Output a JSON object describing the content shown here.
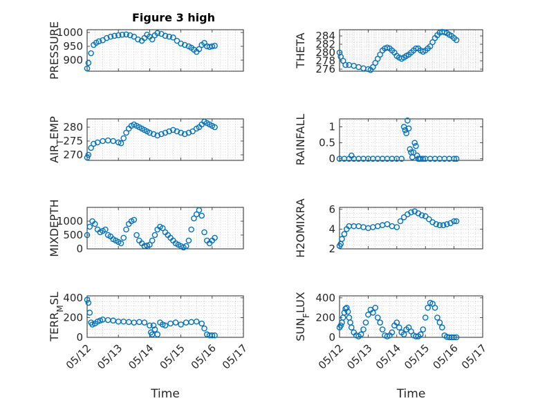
{
  "figure_title": "Figure 3 high",
  "colors": {
    "marker": "#0072BD",
    "axis": "#262626",
    "grid": "#c8c8c8"
  },
  "chart_data": [
    {
      "type": "scatter",
      "ylabel": "PRESSURE",
      "ylim": [
        860,
        1010
      ],
      "yticks": [
        900,
        950,
        1000
      ],
      "xlim": [
        "05/12",
        "05/17"
      ],
      "xticks": [],
      "grid": true,
      "series": [
        {
          "x": [
            "05/12 00:00",
            "05/12 01:00",
            "05/12 03:00",
            "05/12 05:00",
            "05/12 07:00",
            "05/12 09:00",
            "05/12 12:00",
            "05/12 15:00",
            "05/12 18:00",
            "05/12 21:00",
            "05/13 00:00",
            "05/13 03:00",
            "05/13 06:00",
            "05/13 09:00",
            "05/13 12:00",
            "05/13 15:00",
            "05/13 18:00",
            "05/13 20:00",
            "05/13 22:00",
            "05/14 00:00",
            "05/14 02:00",
            "05/14 04:00",
            "05/14 06:00",
            "05/14 09:00",
            "05/14 12:00",
            "05/14 15:00",
            "05/14 18:00",
            "05/14 21:00",
            "05/15 00:00",
            "05/15 03:00",
            "05/15 06:00",
            "05/15 08:00",
            "05/15 10:00",
            "05/15 12:00",
            "05/15 14:00",
            "05/15 16:00",
            "05/15 18:00",
            "05/15 20:00",
            "05/15 22:00",
            "05/16 00:00",
            "05/16 02:00"
          ],
          "y": [
            870,
            890,
            925,
            955,
            963,
            968,
            972,
            980,
            985,
            988,
            990,
            992,
            993,
            990,
            985,
            975,
            970,
            980,
            992,
            985,
            975,
            990,
            998,
            995,
            988,
            985,
            982,
            970,
            960,
            955,
            950,
            945,
            938,
            930,
            940,
            955,
            962,
            950,
            948,
            950,
            952
          ]
        }
      ]
    },
    {
      "type": "scatter",
      "ylabel": "THETA",
      "ylim": [
        275.5,
        285.5
      ],
      "yticks": [
        276,
        278,
        280,
        282,
        284
      ],
      "xlim": [
        "05/12",
        "05/17"
      ],
      "xticks": [],
      "grid": true,
      "series": [
        {
          "x": [
            "05/12 00:00",
            "05/12 01:00",
            "05/12 03:00",
            "05/12 05:00",
            "05/12 08:00",
            "05/12 12:00",
            "05/12 16:00",
            "05/12 20:00",
            "05/13 00:00",
            "05/13 02:00",
            "05/13 04:00",
            "05/13 06:00",
            "05/13 08:00",
            "05/13 10:00",
            "05/13 12:00",
            "05/13 14:00",
            "05/13 16:00",
            "05/13 18:00",
            "05/13 20:00",
            "05/13 22:00",
            "05/14 00:00",
            "05/14 02:00",
            "05/14 04:00",
            "05/14 06:00",
            "05/14 08:00",
            "05/14 10:00",
            "05/14 12:00",
            "05/14 14:00",
            "05/14 16:00",
            "05/14 18:00",
            "05/14 20:00",
            "05/14 22:00",
            "05/15 00:00",
            "05/15 02:00",
            "05/15 04:00",
            "05/15 06:00",
            "05/15 08:00",
            "05/15 10:00",
            "05/15 12:00",
            "05/15 14:00",
            "05/15 16:00",
            "05/15 18:00",
            "05/15 20:00",
            "05/15 22:00",
            "05/16 00:00",
            "05/16 02:00"
          ],
          "y": [
            280,
            279,
            278,
            277,
            277,
            276.8,
            276.5,
            276.2,
            276,
            275.8,
            276.5,
            277.5,
            278.5,
            279.5,
            280.5,
            281,
            281.2,
            281,
            280.5,
            280,
            279.2,
            278.8,
            278.5,
            278.8,
            279.2,
            279.5,
            280,
            280.5,
            281,
            281,
            280.5,
            280.2,
            280.5,
            281,
            281.5,
            282.5,
            283.5,
            284.2,
            284.8,
            285,
            284.9,
            284.7,
            284.3,
            284,
            283.5,
            283
          ]
        }
      ]
    },
    {
      "type": "scatter",
      "ylabel": "AIR_TEMP",
      "ylim": [
        268,
        283
      ],
      "yticks": [
        270,
        275,
        280
      ],
      "xlim": [
        "05/12",
        "05/17"
      ],
      "xticks": [],
      "grid": true,
      "series": [
        {
          "x": [
            "05/12 00:00",
            "05/12 01:00",
            "05/12 03:00",
            "05/12 05:00",
            "05/12 08:00",
            "05/12 12:00",
            "05/12 16:00",
            "05/12 20:00",
            "05/13 00:00",
            "05/13 02:00",
            "05/13 04:00",
            "05/13 06:00",
            "05/13 08:00",
            "05/13 10:00",
            "05/13 12:00",
            "05/13 14:00",
            "05/13 16:00",
            "05/13 18:00",
            "05/13 20:00",
            "05/13 22:00",
            "05/14 00:00",
            "05/14 03:00",
            "05/14 06:00",
            "05/14 09:00",
            "05/14 12:00",
            "05/14 15:00",
            "05/14 18:00",
            "05/14 21:00",
            "05/15 00:00",
            "05/15 03:00",
            "05/15 06:00",
            "05/15 09:00",
            "05/15 12:00",
            "05/15 14:00",
            "05/15 16:00",
            "05/15 18:00",
            "05/15 20:00",
            "05/15 22:00",
            "05/16 00:00",
            "05/16 02:00"
          ],
          "y": [
            269,
            270,
            272.5,
            274,
            274.5,
            275,
            275.2,
            275,
            274.5,
            274.2,
            276,
            278,
            279.5,
            280.5,
            281,
            280.5,
            280,
            279.5,
            279,
            278.5,
            278,
            277.5,
            277,
            277.5,
            278,
            278.5,
            279,
            278.5,
            278,
            277.5,
            278,
            278.5,
            279.5,
            280,
            281,
            282,
            281.5,
            281,
            280.5,
            280
          ]
        }
      ]
    },
    {
      "type": "scatter",
      "ylabel": "RAINFALL",
      "ylim": [
        -0.05,
        1.25
      ],
      "yticks": [
        0,
        0.5,
        1
      ],
      "xlim": [
        "05/12",
        "05/17"
      ],
      "xticks": [],
      "grid": true,
      "series": [
        {
          "x": [
            "05/12 00:00",
            "05/12 04:00",
            "05/12 08:00",
            "05/12 10:00",
            "05/12 12:00",
            "05/12 16:00",
            "05/12 20:00",
            "05/13 00:00",
            "05/13 04:00",
            "05/13 08:00",
            "05/13 12:00",
            "05/13 16:00",
            "05/13 20:00",
            "05/14 00:00",
            "05/14 04:00",
            "05/14 06:00",
            "05/14 07:00",
            "05/14 08:00",
            "05/14 09:00",
            "05/14 10:00",
            "05/14 11:00",
            "05/14 12:00",
            "05/14 13:00",
            "05/14 14:00",
            "05/14 15:00",
            "05/14 16:00",
            "05/14 17:00",
            "05/14 18:00",
            "05/14 19:00",
            "05/14 20:00",
            "05/14 22:00",
            "05/15 00:00",
            "05/15 04:00",
            "05/15 08:00",
            "05/15 12:00",
            "05/15 16:00",
            "05/15 20:00",
            "05/16 00:00",
            "05/16 02:00"
          ],
          "y": [
            0,
            0,
            0,
            0.1,
            0,
            0,
            0,
            0,
            0,
            0,
            0,
            0,
            0,
            0,
            0,
            1.0,
            0.9,
            0.8,
            1.2,
            0.95,
            0.3,
            0.2,
            0.05,
            0.2,
            0.5,
            0.4,
            0.1,
            0,
            0,
            0,
            0,
            0,
            0,
            0,
            0,
            0,
            0,
            0,
            0
          ]
        }
      ]
    },
    {
      "type": "scatter",
      "ylabel": "MIXDEPTH",
      "ylim": [
        0,
        1500
      ],
      "yticks": [
        0,
        500,
        1000
      ],
      "xlim": [
        "05/12",
        "05/17"
      ],
      "xticks": [],
      "grid": true,
      "series": [
        {
          "x": [
            "05/12 00:00",
            "05/12 02:00",
            "05/12 04:00",
            "05/12 06:00",
            "05/12 08:00",
            "05/12 10:00",
            "05/12 12:00",
            "05/12 14:00",
            "05/12 16:00",
            "05/12 18:00",
            "05/12 20:00",
            "05/12 22:00",
            "05/13 00:00",
            "05/13 02:00",
            "05/13 04:00",
            "05/13 06:00",
            "05/13 08:00",
            "05/13 10:00",
            "05/13 12:00",
            "05/13 14:00",
            "05/13 16:00",
            "05/13 18:00",
            "05/13 20:00",
            "05/13 22:00",
            "05/14 00:00",
            "05/14 02:00",
            "05/14 04:00",
            "05/14 06:00",
            "05/14 08:00",
            "05/14 10:00",
            "05/14 12:00",
            "05/14 14:00",
            "05/14 16:00",
            "05/14 18:00",
            "05/14 20:00",
            "05/14 22:00",
            "05/15 00:00",
            "05/15 02:00",
            "05/15 04:00",
            "05/15 06:00",
            "05/15 08:00",
            "05/15 10:00",
            "05/15 12:00",
            "05/15 14:00",
            "05/15 16:00",
            "05/15 18:00",
            "05/15 20:00",
            "05/15 22:00",
            "05/16 00:00",
            "05/16 02:00"
          ],
          "y": [
            500,
            800,
            1000,
            900,
            700,
            600,
            650,
            700,
            500,
            450,
            350,
            300,
            250,
            200,
            400,
            700,
            900,
            1000,
            1050,
            500,
            300,
            200,
            100,
            120,
            150,
            300,
            500,
            700,
            800,
            750,
            600,
            500,
            400,
            300,
            200,
            150,
            100,
            50,
            100,
            300,
            700,
            1100,
            1250,
            1400,
            1200,
            600,
            300,
            200,
            300,
            400
          ]
        }
      ]
    },
    {
      "type": "scatter",
      "ylabel": "H2OMIXRA",
      "ylim": [
        2,
        6.2
      ],
      "yticks": [
        2,
        4,
        6
      ],
      "xlim": [
        "05/12",
        "05/17"
      ],
      "xticks": [],
      "grid": true,
      "series": [
        {
          "x": [
            "05/12 00:00",
            "05/12 01:00",
            "05/12 02:00",
            "05/12 04:00",
            "05/12 06:00",
            "05/12 08:00",
            "05/12 12:00",
            "05/12 16:00",
            "05/12 20:00",
            "05/13 00:00",
            "05/13 04:00",
            "05/13 08:00",
            "05/13 12:00",
            "05/13 16:00",
            "05/13 20:00",
            "05/14 00:00",
            "05/14 03:00",
            "05/14 06:00",
            "05/14 09:00",
            "05/14 12:00",
            "05/14 15:00",
            "05/14 18:00",
            "05/14 21:00",
            "05/15 00:00",
            "05/15 03:00",
            "05/15 06:00",
            "05/15 09:00",
            "05/15 12:00",
            "05/15 15:00",
            "05/15 18:00",
            "05/15 21:00",
            "05/16 00:00",
            "05/16 02:00"
          ],
          "y": [
            2.3,
            2.5,
            3,
            3.5,
            4,
            4.3,
            4.3,
            4.3,
            4.2,
            4.1,
            4.2,
            4.3,
            4.4,
            4.5,
            4.3,
            4.2,
            4.8,
            5.2,
            5.5,
            5.7,
            5.8,
            5.6,
            5.4,
            5.3,
            5,
            4.7,
            4.5,
            4.4,
            4.4,
            4.5,
            4.6,
            4.8,
            4.8
          ]
        }
      ]
    },
    {
      "type": "scatter",
      "ylabel": "TERR_MSL",
      "ylim": [
        0,
        420
      ],
      "yticks": [
        0,
        200,
        400
      ],
      "xlim": [
        "05/12",
        "05/17"
      ],
      "xticks": [
        "05/12",
        "05/13",
        "05/14",
        "05/15",
        "05/16",
        "05/17"
      ],
      "xlabel": "Time",
      "grid": true,
      "series": [
        {
          "x": [
            "05/12 00:00",
            "05/12 01:00",
            "05/12 02:00",
            "05/12 03:00",
            "05/12 04:00",
            "05/12 06:00",
            "05/12 08:00",
            "05/12 10:00",
            "05/12 12:00",
            "05/12 16:00",
            "05/12 20:00",
            "05/13 00:00",
            "05/13 04:00",
            "05/13 08:00",
            "05/13 12:00",
            "05/13 16:00",
            "05/13 20:00",
            "05/14 00:00",
            "05/14 01:00",
            "05/14 02:00",
            "05/14 03:00",
            "05/14 04:00",
            "05/14 06:00",
            "05/14 08:00",
            "05/14 10:00",
            "05/14 12:00",
            "05/14 16:00",
            "05/14 20:00",
            "05/15 00:00",
            "05/15 04:00",
            "05/15 08:00",
            "05/15 12:00",
            "05/15 16:00",
            "05/15 18:00",
            "05/15 20:00",
            "05/15 22:00",
            "05/16 00:00",
            "05/16 02:00"
          ],
          "y": [
            380,
            350,
            250,
            150,
            130,
            140,
            160,
            170,
            180,
            175,
            170,
            160,
            160,
            155,
            150,
            155,
            150,
            120,
            50,
            30,
            120,
            80,
            30,
            150,
            130,
            120,
            140,
            150,
            130,
            150,
            155,
            160,
            140,
            90,
            30,
            20,
            20,
            20
          ]
        }
      ]
    },
    {
      "type": "scatter",
      "ylabel": "SUN_FLUX",
      "ylim": [
        0,
        420
      ],
      "yticks": [
        0,
        200,
        400
      ],
      "xlim": [
        "05/12",
        "05/17"
      ],
      "xticks": [
        "05/12",
        "05/13",
        "05/14",
        "05/15",
        "05/16",
        "05/17"
      ],
      "xlabel": "Time",
      "grid": true,
      "series": [
        {
          "x": [
            "05/12 00:00",
            "05/12 01:00",
            "05/12 02:00",
            "05/12 03:00",
            "05/12 04:00",
            "05/12 05:00",
            "05/12 06:00",
            "05/12 07:00",
            "05/12 08:00",
            "05/12 09:00",
            "05/12 10:00",
            "05/12 12:00",
            "05/12 14:00",
            "05/12 16:00",
            "05/12 18:00",
            "05/12 20:00",
            "05/12 22:00",
            "05/13 00:00",
            "05/13 02:00",
            "05/13 04:00",
            "05/13 06:00",
            "05/13 08:00",
            "05/13 10:00",
            "05/13 12:00",
            "05/13 14:00",
            "05/13 16:00",
            "05/13 18:00",
            "05/13 20:00",
            "05/13 22:00",
            "05/14 00:00",
            "05/14 02:00",
            "05/14 04:00",
            "05/14 06:00",
            "05/14 08:00",
            "05/14 10:00",
            "05/14 12:00",
            "05/14 14:00",
            "05/14 16:00",
            "05/14 18:00",
            "05/14 20:00",
            "05/14 22:00",
            "05/15 00:00",
            "05/15 02:00",
            "05/15 04:00",
            "05/15 06:00",
            "05/15 08:00",
            "05/15 10:00",
            "05/15 12:00",
            "05/15 14:00",
            "05/15 16:00",
            "05/15 18:00",
            "05/15 20:00",
            "05/15 22:00",
            "05/16 00:00",
            "05/16 02:00"
          ],
          "y": [
            100,
            120,
            150,
            200,
            250,
            290,
            300,
            260,
            200,
            150,
            100,
            50,
            20,
            10,
            30,
            80,
            150,
            230,
            280,
            250,
            300,
            200,
            150,
            80,
            20,
            10,
            20,
            50,
            120,
            150,
            100,
            50,
            30,
            80,
            100,
            60,
            20,
            10,
            10,
            30,
            80,
            200,
            300,
            350,
            340,
            300,
            200,
            150,
            100,
            20,
            5,
            0,
            0,
            0,
            0
          ]
        }
      ]
    }
  ]
}
